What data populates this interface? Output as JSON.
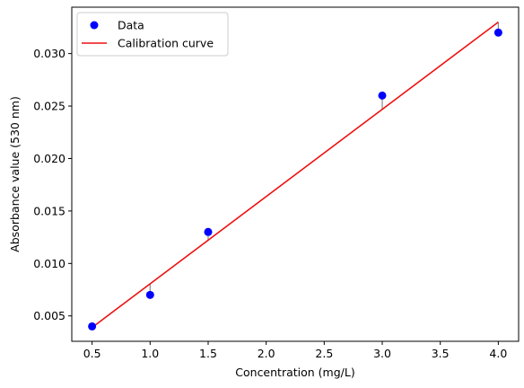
{
  "chart_data": {
    "type": "scatter",
    "title": "",
    "xlabel": "Concentration (mg/L)",
    "ylabel": "Absorbance value (530 nm)",
    "xlim": [
      0.325,
      4.175
    ],
    "ylim": [
      0.00258,
      0.03442
    ],
    "xticks": [
      0.5,
      1.0,
      1.5,
      2.0,
      2.5,
      3.0,
      3.5,
      4.0
    ],
    "xtick_labels": [
      "0.5",
      "1.0",
      "1.5",
      "2.0",
      "2.5",
      "3.0",
      "3.5",
      "4.0"
    ],
    "yticks": [
      0.005,
      0.01,
      0.015,
      0.02,
      0.025,
      0.03
    ],
    "ytick_labels": [
      "0.005",
      "0.010",
      "0.015",
      "0.020",
      "0.025",
      "0.030"
    ],
    "grid": false,
    "legend_position": "top-left",
    "series": [
      {
        "name": "Data",
        "kind": "scatter",
        "color": "#0000ff",
        "x": [
          0.5,
          1.0,
          1.5,
          3.0,
          4.0
        ],
        "y": [
          0.004,
          0.007,
          0.013,
          0.026,
          0.032
        ]
      },
      {
        "name": "Calibration curve",
        "kind": "line",
        "color": "#ee1111",
        "x": [
          0.5,
          4.0
        ],
        "y": [
          0.0039,
          0.033
        ]
      }
    ],
    "residual_color": "#888888"
  }
}
